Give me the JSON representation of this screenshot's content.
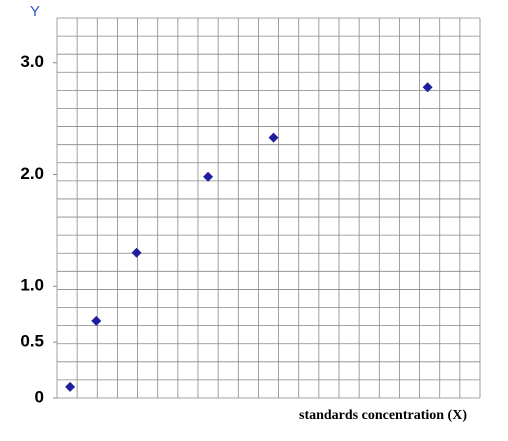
{
  "chart_data": {
    "type": "scatter",
    "y_label": "Y",
    "x_label": "standards concentration (X)",
    "x": [
      0.65,
      1.95,
      3.95,
      7.5,
      10.75,
      18.4
    ],
    "series": [
      {
        "color": "#1f1f9e",
        "values": [
          0.1,
          0.69,
          1.3,
          1.98,
          2.33,
          2.78
        ]
      }
    ],
    "xlim": [
      0,
      21
    ],
    "ylim": [
      0,
      3.4
    ],
    "yticks": [
      {
        "value": 0,
        "label": "0"
      },
      {
        "value": 0.5,
        "label": "0.5"
      },
      {
        "value": 1,
        "label": "1.0"
      },
      {
        "value": 2,
        "label": "2.0"
      },
      {
        "value": 3,
        "label": "3.0"
      }
    ],
    "grid": true
  }
}
